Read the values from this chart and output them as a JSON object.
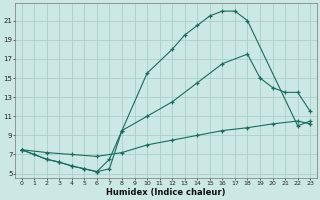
{
  "xlabel": "Humidex (Indice chaleur)",
  "bg_color": "#cce8e4",
  "grid_color": "#aacfca",
  "line_color": "#1a6b5e",
  "xlim": [
    -0.5,
    23.5
  ],
  "ylim": [
    4.5,
    22.8
  ],
  "xticks": [
    0,
    1,
    2,
    3,
    4,
    5,
    6,
    7,
    8,
    9,
    10,
    11,
    12,
    13,
    14,
    15,
    16,
    17,
    18,
    19,
    20,
    21,
    22,
    23
  ],
  "yticks": [
    5,
    7,
    9,
    11,
    13,
    15,
    17,
    19,
    21
  ],
  "line1_x": [
    0,
    1,
    2,
    3,
    4,
    5,
    6,
    7,
    8,
    10,
    12,
    13,
    14,
    15,
    16,
    17,
    18,
    22,
    23
  ],
  "line1_y": [
    7.5,
    7.0,
    6.5,
    6.2,
    5.8,
    5.5,
    5.2,
    5.5,
    9.5,
    15.5,
    18.0,
    19.5,
    20.5,
    21.5,
    22.0,
    22.0,
    21.0,
    10.0,
    10.5
  ],
  "line2_x": [
    0,
    2,
    3,
    4,
    5,
    6,
    7,
    8,
    10,
    12,
    14,
    16,
    18,
    19,
    20,
    21,
    22,
    23
  ],
  "line2_y": [
    7.5,
    6.5,
    6.2,
    5.8,
    5.5,
    5.2,
    6.5,
    9.5,
    11.0,
    12.5,
    14.5,
    16.5,
    17.5,
    15.0,
    14.0,
    13.5,
    13.5,
    11.5
  ],
  "line3_x": [
    0,
    2,
    4,
    6,
    8,
    10,
    12,
    14,
    16,
    18,
    20,
    22,
    23
  ],
  "line3_y": [
    7.5,
    7.2,
    7.0,
    6.8,
    7.2,
    8.0,
    8.5,
    9.0,
    9.5,
    9.8,
    10.2,
    10.5,
    10.2
  ],
  "marker": "+"
}
